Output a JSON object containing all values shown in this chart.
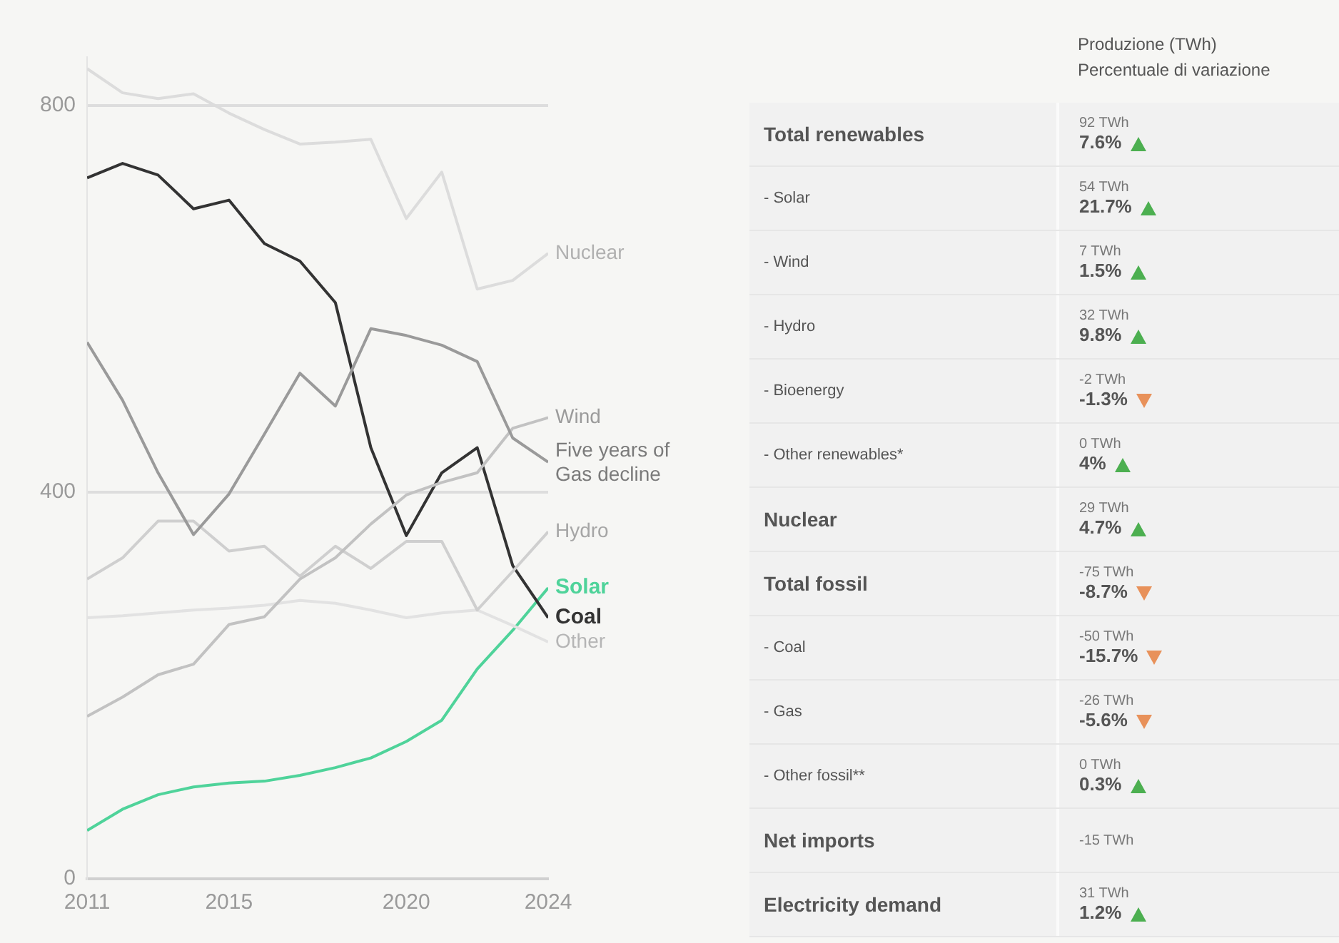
{
  "chart_data": [
    {
      "type": "line",
      "x": [
        2011,
        2012,
        2013,
        2014,
        2015,
        2016,
        2017,
        2018,
        2019,
        2020,
        2021,
        2022,
        2023,
        2024
      ],
      "xlim": [
        2011,
        2024
      ],
      "xticks": [
        2011,
        2015,
        2020,
        2024
      ],
      "ylim": [
        0,
        850
      ],
      "yticks": [
        0,
        400,
        800
      ],
      "grid": "y",
      "legend": false,
      "marker": "none",
      "line_style": "solid",
      "series": [
        {
          "name": "Nuclear",
          "color": "#dcdcdc",
          "values": [
            838,
            813,
            807,
            812,
            792,
            775,
            760,
            762,
            765,
            683,
            731,
            610,
            619,
            647
          ]
        },
        {
          "name": "Five years of Gas decline",
          "color": "#9a9a9a",
          "values": [
            555,
            495,
            420,
            356,
            398,
            460,
            523,
            489,
            569,
            562,
            552,
            535,
            456,
            431
          ]
        },
        {
          "name": "Wind",
          "color": "#c2c2c2",
          "values": [
            168,
            188,
            211,
            222,
            263,
            271,
            310,
            332,
            367,
            397,
            410,
            420,
            466,
            477
          ]
        },
        {
          "name": "Hydro",
          "color": "#cfcfcf",
          "values": [
            310,
            332,
            370,
            370,
            339,
            344,
            313,
            344,
            321,
            349,
            349,
            278,
            318,
            359
          ]
        },
        {
          "name": "Other",
          "color": "#e2e2e2",
          "values": [
            270,
            272,
            275,
            278,
            280,
            283,
            288,
            285,
            278,
            270,
            275,
            278,
            262,
            245
          ]
        },
        {
          "name": "Coal",
          "color": "#333333",
          "values": [
            725,
            740,
            728,
            693,
            702,
            657,
            639,
            596,
            446,
            355,
            420,
            446,
            324,
            270
          ]
        },
        {
          "name": "Solar",
          "color": "#4fd39a",
          "values": [
            50,
            72,
            87,
            95,
            99,
            101,
            107,
            115,
            125,
            142,
            164,
            217,
            257,
            301
          ]
        }
      ]
    },
    {
      "type": "other",
      "categories": [
        "Total renewables",
        "- Solar",
        "- Wind",
        "- Hydro",
        "- Bioenergy",
        "- Other renewables*",
        "Nuclear",
        "Total fossil",
        "- Coal",
        "- Gas",
        "- Other fossil**",
        "Net imports",
        "Electricity demand"
      ],
      "series": [
        {
          "name": "Produzione (TWh)",
          "values": [
            92,
            54,
            7,
            32,
            -2,
            0,
            29,
            -75,
            -50,
            -26,
            0,
            -15,
            31
          ],
          "value_labels": [
            "92 TWh",
            "54 TWh",
            "7 TWh",
            "32 TWh",
            "-2 TWh",
            "0 TWh",
            "29 TWh",
            "-75 TWh",
            "-50 TWh",
            "-26 TWh",
            "0 TWh",
            "-15 TWh",
            "31 TWh"
          ]
        },
        {
          "name": "Percentuale di variazione",
          "colors": [
            "#4caf50",
            "#4caf50",
            "#4caf50",
            "#4caf50",
            "#e8915a",
            "#4caf50",
            "#4caf50",
            "#e8915a",
            "#e8915a",
            "#e8915a",
            "#4caf50",
            null,
            "#4caf50"
          ],
          "values": [
            7.6,
            21.7,
            1.5,
            9.8,
            -1.3,
            4,
            4.7,
            -8.7,
            -15.7,
            -5.6,
            0.3,
            null,
            1.2
          ],
          "value_labels": [
            "7.6%",
            "21.7%",
            "1.5%",
            "9.8%",
            "-1.3%",
            "4%",
            "4.7%",
            "-8.7%",
            "-15.7%",
            "-5.6%",
            "0.3%",
            null,
            "1.2%"
          ]
        }
      ]
    }
  ]
}
